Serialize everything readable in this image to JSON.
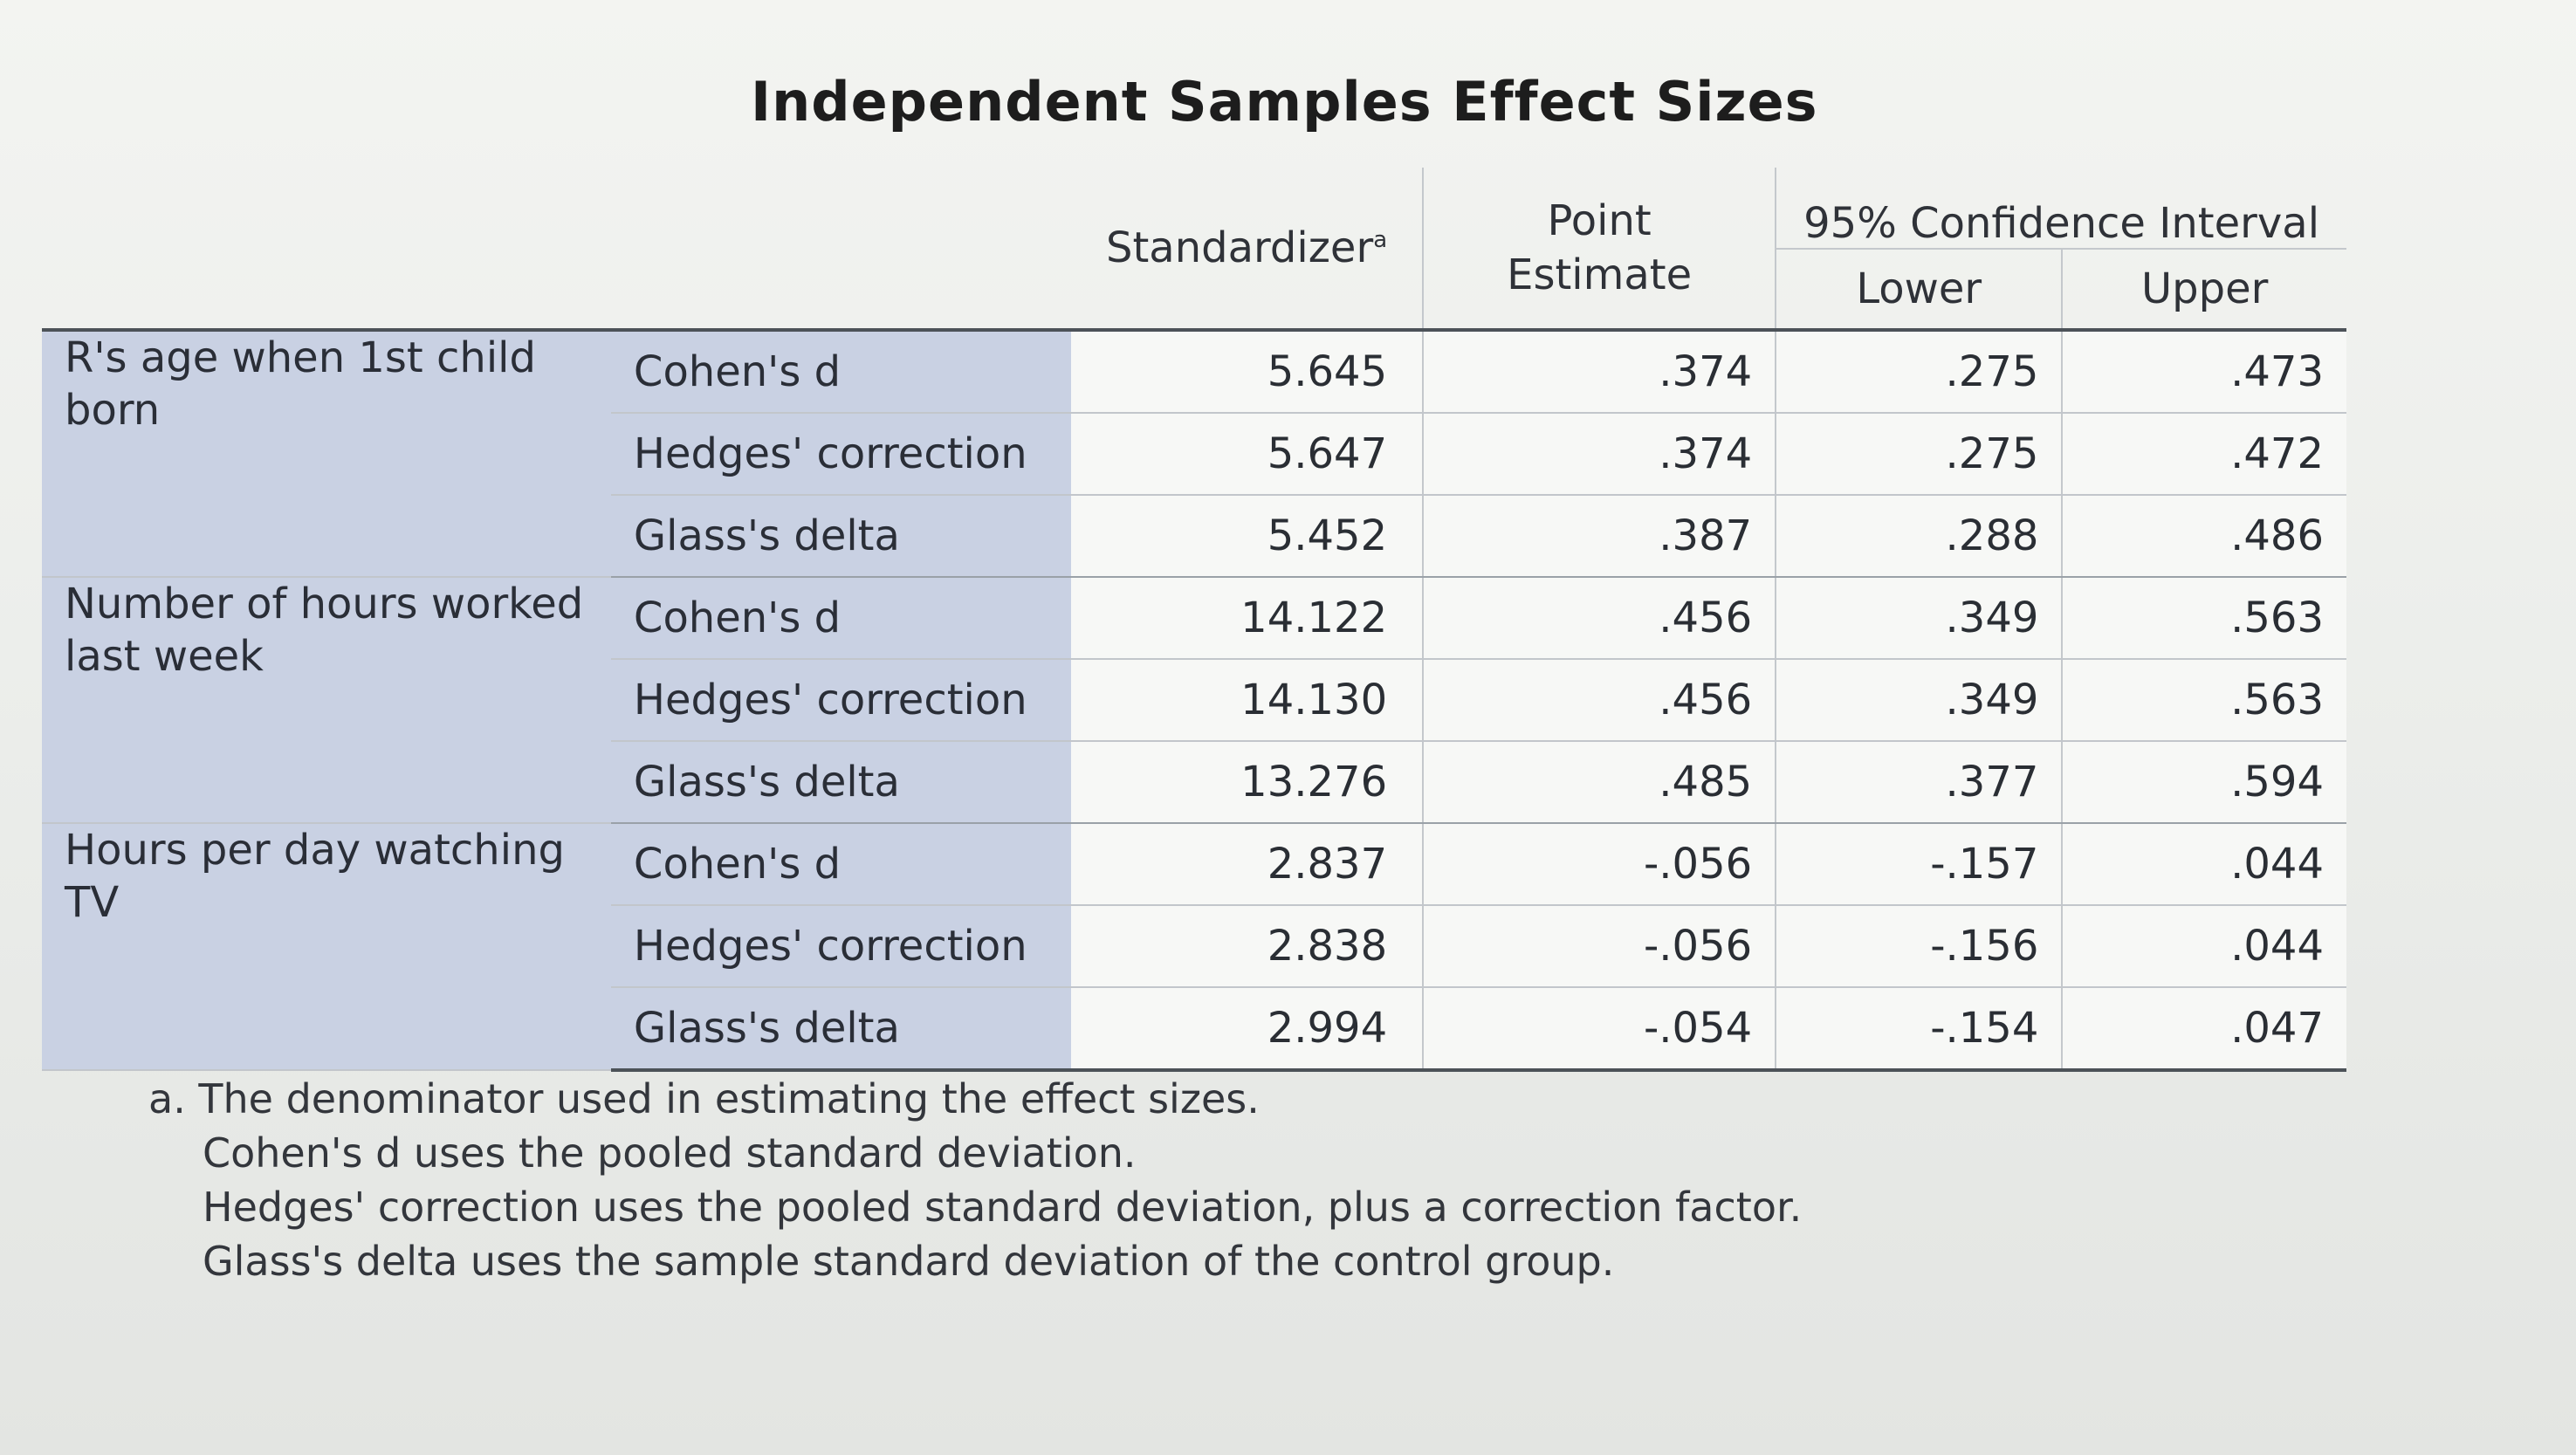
{
  "title": "Independent Samples Effect Sizes",
  "headers": {
    "standardizer": "Standardizer",
    "standardizer_mark": "a",
    "point_estimate_line1": "Point",
    "point_estimate_line2": "Estimate",
    "ci": "95% Confidence Interval",
    "lower": "Lower",
    "upper": "Upper"
  },
  "groups": [
    {
      "variable": "R's age when 1st child born",
      "rows": [
        {
          "measure": "Cohen's d",
          "standardizer": "5.645",
          "point": ".374",
          "lower": ".275",
          "upper": ".473"
        },
        {
          "measure": "Hedges' correction",
          "standardizer": "5.647",
          "point": ".374",
          "lower": ".275",
          "upper": ".472"
        },
        {
          "measure": "Glass's delta",
          "standardizer": "5.452",
          "point": ".387",
          "lower": ".288",
          "upper": ".486"
        }
      ]
    },
    {
      "variable": "Number of hours worked last week",
      "rows": [
        {
          "measure": "Cohen's d",
          "standardizer": "14.122",
          "point": ".456",
          "lower": ".349",
          "upper": ".563"
        },
        {
          "measure": "Hedges' correction",
          "standardizer": "14.130",
          "point": ".456",
          "lower": ".349",
          "upper": ".563"
        },
        {
          "measure": "Glass's delta",
          "standardizer": "13.276",
          "point": ".485",
          "lower": ".377",
          "upper": ".594"
        }
      ]
    },
    {
      "variable": "Hours per day watching TV",
      "rows": [
        {
          "measure": "Cohen's d",
          "standardizer": "2.837",
          "point": "-.056",
          "lower": "-.157",
          "upper": ".044"
        },
        {
          "measure": "Hedges' correction",
          "standardizer": "2.838",
          "point": "-.056",
          "lower": "-.156",
          "upper": ".044"
        },
        {
          "measure": "Glass's delta",
          "standardizer": "2.994",
          "point": "-.054",
          "lower": "-.154",
          "upper": ".047"
        }
      ]
    }
  ],
  "footnote": {
    "line1": "a. The denominator used in estimating the effect sizes.",
    "line2": "Cohen's d uses the pooled standard deviation.",
    "line3": "Hedges' correction uses the pooled standard deviation, plus a correction factor.",
    "line4": "Glass's delta uses the sample standard deviation of the control group."
  }
}
